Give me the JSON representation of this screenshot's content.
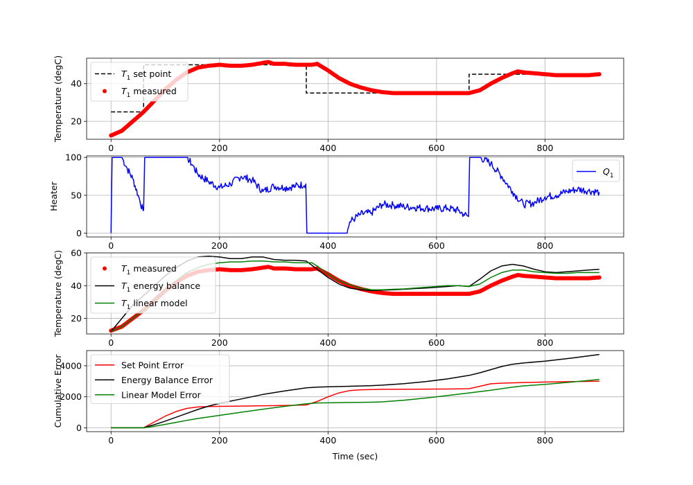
{
  "chart_data": [
    {
      "type": "line",
      "ylabel": "Temperature (degC)",
      "xlim": [
        -45,
        945
      ],
      "ylim": [
        10.5,
        53.5
      ],
      "xticks": [
        0,
        200,
        400,
        600,
        800
      ],
      "yticks": [
        20,
        40
      ],
      "grid": true,
      "legend": {
        "placement": "top-left"
      },
      "series": [
        {
          "name": "$T_1$ set point",
          "legend_label": {
            "sym": "T",
            "sub": "1",
            "rest": " set point"
          },
          "style": "dashed",
          "color": "#000000",
          "x": [
            0,
            60,
            60,
            360,
            360,
            660,
            660,
            900
          ],
          "y": [
            25,
            25,
            50,
            50,
            35,
            35,
            45,
            45
          ]
        },
        {
          "name": "$T_1$ measured",
          "legend_label": {
            "sym": "T",
            "sub": "1",
            "rest": " measured"
          },
          "style": "markers",
          "color": "#ff0000",
          "x": [
            0,
            20,
            40,
            60,
            80,
            100,
            120,
            140,
            160,
            180,
            200,
            220,
            240,
            260,
            280,
            290,
            300,
            320,
            340,
            360,
            370,
            380,
            400,
            420,
            440,
            460,
            480,
            500,
            520,
            540,
            560,
            580,
            600,
            620,
            640,
            660,
            680,
            700,
            720,
            740,
            750,
            760,
            780,
            800,
            820,
            840,
            860,
            880,
            900
          ],
          "y": [
            12.5,
            15,
            20,
            25,
            31,
            37,
            42,
            46,
            48.5,
            49.5,
            50,
            49.5,
            49.5,
            50,
            51,
            51.5,
            50.5,
            50.5,
            50,
            50,
            50,
            50.5,
            47,
            43,
            40,
            38,
            36.5,
            35.5,
            35,
            35,
            35,
            35,
            35,
            35,
            35,
            35,
            36.5,
            40,
            43,
            45.5,
            46.5,
            46,
            45.5,
            45,
            44.5,
            44.5,
            44.5,
            44.5,
            45
          ]
        }
      ]
    },
    {
      "type": "line",
      "ylabel": "Heater",
      "xlim": [
        -45,
        945
      ],
      "ylim": [
        -5,
        102
      ],
      "xticks": [
        0,
        200,
        400,
        600,
        800
      ],
      "yticks": [
        0,
        50,
        100
      ],
      "grid": true,
      "legend": {
        "placement": "top-right"
      },
      "series": [
        {
          "name": "$Q_1$",
          "legend_label": {
            "sym": "Q",
            "sub": "1",
            "rest": ""
          },
          "style": "solid",
          "color": "#0000ff",
          "x": [
            0,
            2,
            20,
            30,
            40,
            50,
            59,
            60,
            62,
            80,
            100,
            120,
            140,
            150,
            160,
            180,
            200,
            220,
            240,
            260,
            280,
            300,
            320,
            340,
            359,
            361,
            380,
            400,
            420,
            435,
            440,
            450,
            460,
            480,
            500,
            520,
            540,
            560,
            580,
            600,
            620,
            640,
            650,
            659,
            661,
            680,
            700,
            720,
            740,
            760,
            780,
            800,
            820,
            840,
            860,
            880,
            900
          ],
          "y": [
            0,
            100,
            100,
            85,
            72,
            50,
            30,
            30,
            100,
            100,
            100,
            100,
            100,
            90,
            78,
            68,
            60,
            65,
            75,
            70,
            55,
            62,
            60,
            62,
            65,
            0,
            0,
            0,
            0,
            0,
            15,
            20,
            25,
            27,
            38,
            37,
            35,
            34,
            33,
            32,
            33,
            30,
            25,
            22,
            100,
            100,
            92,
            75,
            55,
            38,
            40,
            48,
            50,
            55,
            58,
            56,
            54
          ]
        }
      ]
    },
    {
      "type": "line",
      "ylabel": "Temperature (degC)",
      "xlim": [
        -45,
        945
      ],
      "ylim": [
        10.5,
        60
      ],
      "xticks": [
        0,
        200,
        400,
        600,
        800
      ],
      "yticks": [
        20,
        40,
        60
      ],
      "grid": true,
      "legend": {
        "placement": "top-left"
      },
      "series": [
        {
          "name": "$T_1$ measured",
          "legend_label": {
            "sym": "T",
            "sub": "1",
            "rest": " measured"
          },
          "style": "markers",
          "color": "#ff0000",
          "x": [
            0,
            20,
            40,
            60,
            80,
            100,
            120,
            140,
            160,
            180,
            200,
            220,
            240,
            260,
            280,
            290,
            300,
            320,
            340,
            360,
            370,
            380,
            400,
            420,
            440,
            460,
            480,
            500,
            520,
            540,
            560,
            580,
            600,
            620,
            640,
            660,
            680,
            700,
            720,
            740,
            750,
            760,
            780,
            800,
            820,
            840,
            860,
            880,
            900
          ],
          "y": [
            12.5,
            15,
            20,
            25,
            31,
            37,
            42,
            46,
            48.5,
            49.5,
            50,
            49.5,
            49.5,
            50,
            51,
            51.5,
            50.5,
            50.5,
            50,
            50,
            50,
            50.5,
            47,
            43,
            40,
            38,
            36.5,
            35.5,
            35,
            35,
            35,
            35,
            35,
            35,
            35,
            35,
            36.5,
            40,
            43,
            45.5,
            46.5,
            46,
            45.5,
            45,
            44.5,
            44.5,
            44.5,
            44.5,
            45
          ]
        },
        {
          "name": "$T_1$ energy balance",
          "legend_label": {
            "sym": "T",
            "sub": "1",
            "rest": " energy balance"
          },
          "style": "solid",
          "color": "#000000",
          "x": [
            0,
            20,
            40,
            60,
            80,
            100,
            120,
            140,
            160,
            180,
            200,
            220,
            240,
            260,
            280,
            300,
            320,
            340,
            360,
            380,
            400,
            420,
            440,
            460,
            480,
            500,
            520,
            540,
            560,
            580,
            600,
            620,
            640,
            660,
            680,
            700,
            720,
            740,
            760,
            780,
            800,
            820,
            840,
            860,
            880,
            900
          ],
          "y": [
            12,
            20,
            28,
            34,
            40,
            46,
            51,
            55,
            57.5,
            58,
            57.5,
            56.5,
            56.5,
            57.5,
            57.5,
            56,
            55.5,
            55.5,
            55,
            50,
            45,
            41,
            38.5,
            37.5,
            37,
            37.2,
            37.5,
            37.8,
            38.2,
            38.5,
            39,
            39.5,
            40,
            39.5,
            44,
            49,
            52,
            53,
            52,
            50,
            48.5,
            48,
            48.5,
            49,
            49.5,
            50
          ]
        },
        {
          "name": "$T_1$ linear model",
          "legend_label": {
            "sym": "T",
            "sub": "1",
            "rest": " linear model"
          },
          "style": "solid",
          "color": "#008000",
          "x": [
            0,
            20,
            40,
            60,
            80,
            100,
            120,
            140,
            160,
            180,
            200,
            220,
            240,
            260,
            280,
            300,
            320,
            340,
            360,
            370,
            380,
            400,
            420,
            440,
            460,
            480,
            500,
            520,
            540,
            560,
            580,
            600,
            620,
            640,
            660,
            680,
            700,
            720,
            740,
            760,
            780,
            800,
            820,
            840,
            860,
            880,
            900
          ],
          "y": [
            12,
            15,
            20,
            25,
            31,
            37,
            43,
            48,
            51,
            53,
            54,
            54.5,
            54.5,
            55,
            55,
            54.5,
            54.5,
            54,
            54,
            54,
            52,
            47,
            43,
            40.5,
            38.5,
            37.5,
            37.5,
            37.8,
            38,
            38.5,
            39,
            39.5,
            40,
            40,
            39.5,
            41,
            45,
            48,
            49.5,
            49.5,
            48.5,
            48,
            47.5,
            47.5,
            48,
            48,
            48
          ]
        }
      ]
    },
    {
      "type": "line",
      "ylabel": "Cumulative Error",
      "xlabel": "Time (sec)",
      "xlim": [
        -45,
        945
      ],
      "ylim": [
        -250,
        4980
      ],
      "xticks": [
        0,
        200,
        400,
        600,
        800
      ],
      "yticks": [
        0,
        2000,
        4000
      ],
      "grid": true,
      "legend": {
        "placement": "top-left"
      },
      "series": [
        {
          "name": "Set Point Error",
          "style": "solid",
          "color": "#ff0000",
          "x": [
            0,
            60,
            80,
            100,
            120,
            140,
            160,
            180,
            200,
            240,
            280,
            320,
            360,
            380,
            400,
            420,
            440,
            460,
            480,
            500,
            560,
            620,
            660,
            680,
            700,
            720,
            760,
            800,
            850,
            900
          ],
          "y": [
            0,
            0,
            380,
            750,
            1050,
            1250,
            1340,
            1370,
            1380,
            1400,
            1420,
            1440,
            1470,
            1700,
            2000,
            2250,
            2400,
            2450,
            2470,
            2480,
            2490,
            2500,
            2520,
            2680,
            2840,
            2880,
            2920,
            2950,
            2980,
            3000
          ]
        },
        {
          "name": "Energy Balance Error",
          "style": "solid",
          "color": "#000000",
          "x": [
            0,
            60,
            80,
            100,
            120,
            140,
            160,
            180,
            200,
            240,
            280,
            320,
            360,
            380,
            400,
            440,
            480,
            500,
            540,
            580,
            620,
            660,
            680,
            700,
            720,
            740,
            760,
            800,
            850,
            900
          ],
          "y": [
            0,
            0,
            200,
            430,
            680,
            930,
            1180,
            1400,
            1580,
            1860,
            2150,
            2380,
            2580,
            2620,
            2640,
            2680,
            2720,
            2750,
            2850,
            2980,
            3150,
            3380,
            3550,
            3750,
            3950,
            4100,
            4180,
            4300,
            4500,
            4730
          ]
        },
        {
          "name": "Linear Model Error",
          "style": "solid",
          "color": "#008000",
          "x": [
            0,
            60,
            80,
            100,
            120,
            140,
            160,
            200,
            240,
            280,
            320,
            360,
            380,
            400,
            440,
            480,
            500,
            540,
            580,
            620,
            660,
            700,
            740,
            760,
            800,
            850,
            900
          ],
          "y": [
            0,
            0,
            100,
            220,
            350,
            480,
            600,
            800,
            1000,
            1200,
            1380,
            1550,
            1600,
            1610,
            1630,
            1650,
            1670,
            1780,
            1920,
            2080,
            2250,
            2420,
            2620,
            2700,
            2800,
            2950,
            3120
          ]
        }
      ]
    }
  ]
}
